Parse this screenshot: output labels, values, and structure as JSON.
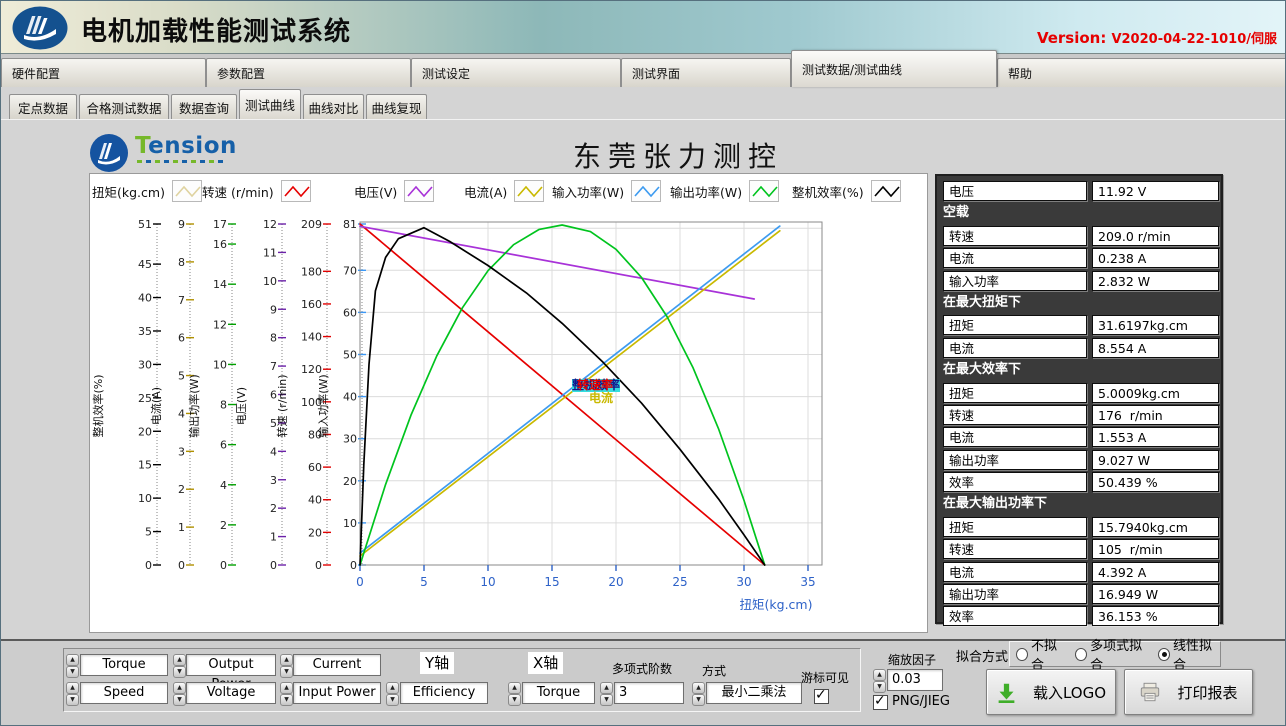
{
  "window": {
    "title": "电机加载性能测试系统",
    "version_label": "Version:",
    "version_value": "V2020-04-22-1010/伺服"
  },
  "menu": {
    "items": [
      "硬件配置",
      "参数配置",
      "测试设定",
      "测试界面",
      "测试数据/测试曲线",
      "帮助"
    ],
    "active_index": 4
  },
  "subtabs": {
    "items": [
      "定点数据",
      "合格测试数据",
      "数据查询",
      "测试曲线",
      "曲线对比",
      "曲线复现"
    ],
    "active_index": 3
  },
  "brand": {
    "name_first": "T",
    "name_rest": "ension"
  },
  "page_title": "东莞张力测控",
  "chart_data": {
    "type": "line",
    "title": "东莞张力测控",
    "x_axis": {
      "label": "扭矩(kg.cm)",
      "min": 0,
      "max": 35,
      "ticks": [
        0,
        5,
        10,
        15,
        20,
        25,
        30,
        35
      ],
      "color": "#2e62c8"
    },
    "grid": true,
    "legend_position": "top",
    "y_axes": [
      {
        "id": "efficiency",
        "label": "整机效率(%)",
        "max": 51,
        "ticks": [
          51,
          45,
          40,
          35,
          30,
          25,
          20,
          15,
          10,
          5,
          0
        ],
        "tick_color": "#000000"
      },
      {
        "id": "current",
        "label": "电流(A)",
        "max": 9,
        "ticks": [
          9,
          8,
          7,
          6,
          5,
          4,
          3,
          2,
          1,
          0
        ],
        "tick_color": "#b09000"
      },
      {
        "id": "output_power",
        "label": "输出功率(W)",
        "max": 17,
        "ticks": [
          17,
          16,
          14,
          12,
          10,
          8,
          6,
          4,
          2,
          0
        ],
        "tick_color": "#00a000"
      },
      {
        "id": "voltage",
        "label": "电压(V)",
        "max": 12,
        "ticks": [
          12,
          11,
          10,
          9,
          8,
          7,
          6,
          5,
          4,
          3,
          2,
          1,
          0
        ],
        "tick_color": "#6b21a8"
      },
      {
        "id": "speed",
        "label": "转速 (r/min)",
        "max": 209,
        "ticks": [
          209,
          180,
          160,
          140,
          120,
          100,
          80,
          60,
          40,
          20,
          0
        ],
        "tick_color": "#e00000"
      },
      {
        "id": "input_power",
        "label": "输入功率(W)",
        "max": 81,
        "ticks": [
          81,
          70,
          60,
          50,
          40,
          30,
          20,
          10,
          0
        ],
        "tick_color": "#3b97f5"
      }
    ],
    "legend": [
      {
        "label": "扭矩(kg.cm)",
        "color": "#dfd3a0"
      },
      {
        "label": "转速 (r/min)",
        "color": "#e60000"
      },
      {
        "label": "电压(V)",
        "color": "#a832d8"
      },
      {
        "label": "电流(A)",
        "color": "#c9b900"
      },
      {
        "label": "输入功率(W)",
        "color": "#3d9bf0"
      },
      {
        "label": "输出功率(W)",
        "color": "#00c41e"
      },
      {
        "label": "整机效率(%)",
        "color": "#000000"
      }
    ],
    "series": [
      {
        "name": "转速",
        "color": "#e60000",
        "axis_max": 209,
        "points": [
          [
            0,
            209
          ],
          [
            31.62,
            0
          ]
        ]
      },
      {
        "name": "电压",
        "color": "#a832d8",
        "axis_max": 12,
        "points": [
          [
            0,
            11.92
          ],
          [
            30.8,
            9.36
          ]
        ]
      },
      {
        "name": "电流",
        "color": "#c9b900",
        "axis_max": 9,
        "points": [
          [
            0,
            0.238
          ],
          [
            32.8,
            8.82
          ]
        ]
      },
      {
        "name": "输入功率",
        "color": "#3d9bf0",
        "axis_max": 81,
        "points": [
          [
            0,
            2.832
          ],
          [
            32.8,
            80.5
          ]
        ]
      },
      {
        "name": "输出功率",
        "color": "#00c41e",
        "axis_max": 17,
        "points": [
          [
            0,
            0
          ],
          [
            2,
            4.02
          ],
          [
            4,
            7.5
          ],
          [
            6,
            10.43
          ],
          [
            8,
            12.82
          ],
          [
            10,
            14.67
          ],
          [
            12,
            15.97
          ],
          [
            14,
            16.73
          ],
          [
            15.79,
            16.95
          ],
          [
            18,
            16.62
          ],
          [
            20,
            15.74
          ],
          [
            22,
            14.33
          ],
          [
            24,
            12.37
          ],
          [
            26,
            9.86
          ],
          [
            28,
            6.81
          ],
          [
            30,
            3.22
          ],
          [
            31.62,
            0
          ]
        ]
      },
      {
        "name": "整机效率",
        "color": "#000000",
        "axis_max": 51,
        "points": [
          [
            0,
            0
          ],
          [
            0.3,
            15
          ],
          [
            0.7,
            30
          ],
          [
            1.2,
            41
          ],
          [
            2,
            46
          ],
          [
            3,
            48.8
          ],
          [
            5,
            50.44
          ],
          [
            7,
            48.4
          ],
          [
            10,
            44.8
          ],
          [
            13,
            40.7
          ],
          [
            15.79,
            36.15
          ],
          [
            19,
            30.3
          ],
          [
            22,
            24.2
          ],
          [
            25,
            17.3
          ],
          [
            28,
            9.9
          ],
          [
            30,
            4.5
          ],
          [
            31.62,
            0
          ]
        ]
      }
    ],
    "cursor_labels": [
      {
        "text": "整机效率",
        "color": "#14148c",
        "bg": "#35dede",
        "x": 482,
        "y": 205
      },
      {
        "text": "转速率",
        "color": "#e60000",
        "bg": "transparent",
        "x": 487,
        "y": 205
      },
      {
        "text": "电流",
        "color": "#c9b900",
        "bg": "transparent",
        "x": 499,
        "y": 218
      }
    ]
  },
  "right_panel": {
    "rows": [
      {
        "type": "field",
        "label": "电压",
        "value": "11.92 V"
      },
      {
        "type": "header",
        "label": "空载"
      },
      {
        "type": "field",
        "label": "转速",
        "value": "209.0 r/min"
      },
      {
        "type": "field",
        "label": "电流",
        "value": "0.238 A"
      },
      {
        "type": "field",
        "label": "输入功率",
        "value": "2.832 W"
      },
      {
        "type": "header",
        "label": "在最大扭矩下"
      },
      {
        "type": "field",
        "label": "扭矩",
        "value": "31.6197kg.cm"
      },
      {
        "type": "field",
        "label": "电流",
        "value": "8.554 A"
      },
      {
        "type": "header",
        "label": "在最大效率下"
      },
      {
        "type": "field",
        "label": "扭矩",
        "value": "5.0009kg.cm"
      },
      {
        "type": "field",
        "label": "转速",
        "value": "176  r/min"
      },
      {
        "type": "field",
        "label": "电流",
        "value": "1.553 A"
      },
      {
        "type": "field",
        "label": "输出功率",
        "value": "9.027 W"
      },
      {
        "type": "field",
        "label": "效率",
        "value": "50.439 %"
      },
      {
        "type": "header",
        "label": "在最大输出功率下"
      },
      {
        "type": "field",
        "label": "扭矩",
        "value": "15.7940kg.cm"
      },
      {
        "type": "field",
        "label": "转速",
        "value": "105  r/min"
      },
      {
        "type": "field",
        "label": "电流",
        "value": "4.392 A"
      },
      {
        "type": "field",
        "label": "输出功率",
        "value": "16.949 W"
      },
      {
        "type": "field",
        "label": "效率",
        "value": "36.153 %"
      }
    ]
  },
  "controls": {
    "y_axis_label": "Y轴",
    "x_axis_label": "X轴",
    "selectors_row1": [
      "Torque",
      "Output Power",
      "Current"
    ],
    "selectors_row2": [
      "Speed",
      "Voltage",
      "Input Power",
      "Efficiency"
    ],
    "x_selector": "Torque",
    "poly_label": "多项式阶数",
    "poly_value": "3",
    "method_label": "方式",
    "method_value": "最小二乘法",
    "cursor_visible_label": "游标可见",
    "cursor_visible_checked": true,
    "zoom_label": "缩放因子",
    "zoom_value": "0.03",
    "png_label": "PNG/JIEG",
    "png_checked": true,
    "fit_label": "拟合方式",
    "fit_options": [
      "不拟合",
      "多项式拟合",
      "线性拟合"
    ],
    "fit_selected_index": 2,
    "load_logo_label": "载入LOGO",
    "print_label": "打印报表"
  }
}
